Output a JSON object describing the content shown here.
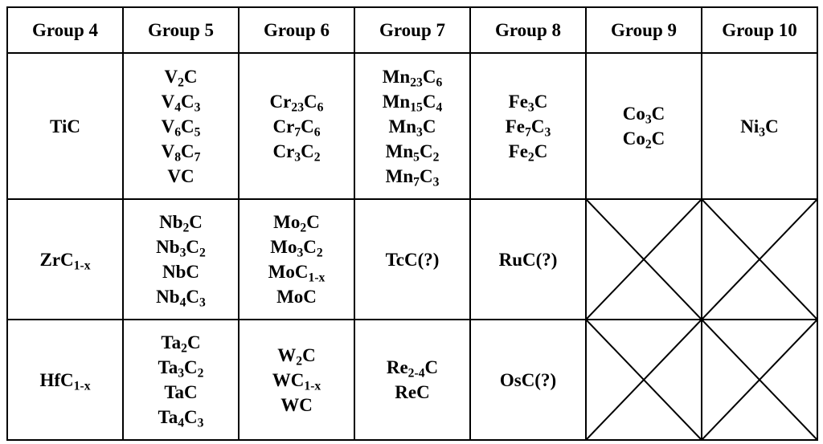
{
  "headers": [
    "Group 4",
    "Group 5",
    "Group 6",
    "Group 7",
    "Group 8",
    "Group 9",
    "Group 10"
  ],
  "rows": [
    [
      [
        [
          [
            "Ti",
            ""
          ],
          [
            "C",
            ""
          ]
        ]
      ],
      [
        [
          [
            "V",
            "2"
          ],
          [
            "C",
            ""
          ]
        ],
        [
          [
            "V",
            "4"
          ],
          [
            "C",
            "3"
          ]
        ],
        [
          [
            "V",
            "6"
          ],
          [
            "C",
            "5"
          ]
        ],
        [
          [
            "V",
            "8"
          ],
          [
            "C",
            "7"
          ]
        ],
        [
          [
            "V",
            ""
          ],
          [
            "C",
            ""
          ]
        ]
      ],
      [
        [
          [
            "Cr",
            "23"
          ],
          [
            "C",
            "6"
          ]
        ],
        [
          [
            "Cr",
            "7"
          ],
          [
            "C",
            "6"
          ]
        ],
        [
          [
            "Cr",
            "3"
          ],
          [
            "C",
            "2"
          ]
        ]
      ],
      [
        [
          [
            "Mn",
            "23"
          ],
          [
            "C",
            "6"
          ]
        ],
        [
          [
            "Mn",
            "15"
          ],
          [
            "C",
            "4"
          ]
        ],
        [
          [
            "Mn",
            "3"
          ],
          [
            "C",
            ""
          ]
        ],
        [
          [
            "Mn",
            "5"
          ],
          [
            "C",
            "2"
          ]
        ],
        [
          [
            "Mn",
            "7"
          ],
          [
            "C",
            "3"
          ]
        ]
      ],
      [
        [
          [
            "Fe",
            "3"
          ],
          [
            "C",
            ""
          ]
        ],
        [
          [
            "Fe",
            "7"
          ],
          [
            "C",
            "3"
          ]
        ],
        [
          [
            "Fe",
            "2"
          ],
          [
            "C",
            ""
          ]
        ]
      ],
      [
        [
          [
            "Co",
            "3"
          ],
          [
            "C",
            ""
          ]
        ],
        [
          [
            "Co",
            "2"
          ],
          [
            "C",
            ""
          ]
        ]
      ],
      [
        [
          [
            "Ni",
            "3"
          ],
          [
            "C",
            ""
          ]
        ]
      ]
    ],
    [
      [
        [
          [
            "Zr",
            ""
          ],
          [
            "C",
            "1-x"
          ]
        ]
      ],
      [
        [
          [
            "Nb",
            "2"
          ],
          [
            "C",
            ""
          ]
        ],
        [
          [
            "Nb",
            "3"
          ],
          [
            "C",
            "2"
          ]
        ],
        [
          [
            "Nb",
            ""
          ],
          [
            "C",
            ""
          ]
        ],
        [
          [
            "Nb",
            "4"
          ],
          [
            "C",
            "3"
          ]
        ]
      ],
      [
        [
          [
            "Mo",
            "2"
          ],
          [
            "C",
            ""
          ]
        ],
        [
          [
            "Mo",
            "3"
          ],
          [
            "C",
            "2"
          ]
        ],
        [
          [
            "Mo",
            ""
          ],
          [
            "C",
            "1-x"
          ]
        ],
        [
          [
            "Mo",
            ""
          ],
          [
            "C",
            ""
          ]
        ]
      ],
      [
        [
          [
            "TcC(?)",
            ""
          ]
        ]
      ],
      [
        [
          [
            "RuC(?)",
            ""
          ]
        ]
      ],
      null,
      null
    ],
    [
      [
        [
          [
            "Hf",
            ""
          ],
          [
            "C",
            "1-x"
          ]
        ]
      ],
      [
        [
          [
            "Ta",
            "2"
          ],
          [
            "C",
            ""
          ]
        ],
        [
          [
            "Ta",
            "3"
          ],
          [
            "C",
            "2"
          ]
        ],
        [
          [
            "Ta",
            ""
          ],
          [
            "C",
            ""
          ]
        ],
        [
          [
            "Ta",
            "4"
          ],
          [
            "C",
            "3"
          ]
        ]
      ],
      [
        [
          [
            "W",
            "2"
          ],
          [
            "C",
            ""
          ]
        ],
        [
          [
            "W",
            ""
          ],
          [
            "C",
            "1-x"
          ]
        ],
        [
          [
            "W",
            ""
          ],
          [
            "C",
            ""
          ]
        ]
      ],
      [
        [
          [
            "Re",
            "2-4"
          ],
          [
            "C",
            ""
          ]
        ],
        [
          [
            "Re",
            ""
          ],
          [
            "C",
            ""
          ]
        ]
      ],
      [
        [
          [
            "OsC(?)",
            ""
          ]
        ]
      ],
      null,
      null
    ]
  ]
}
